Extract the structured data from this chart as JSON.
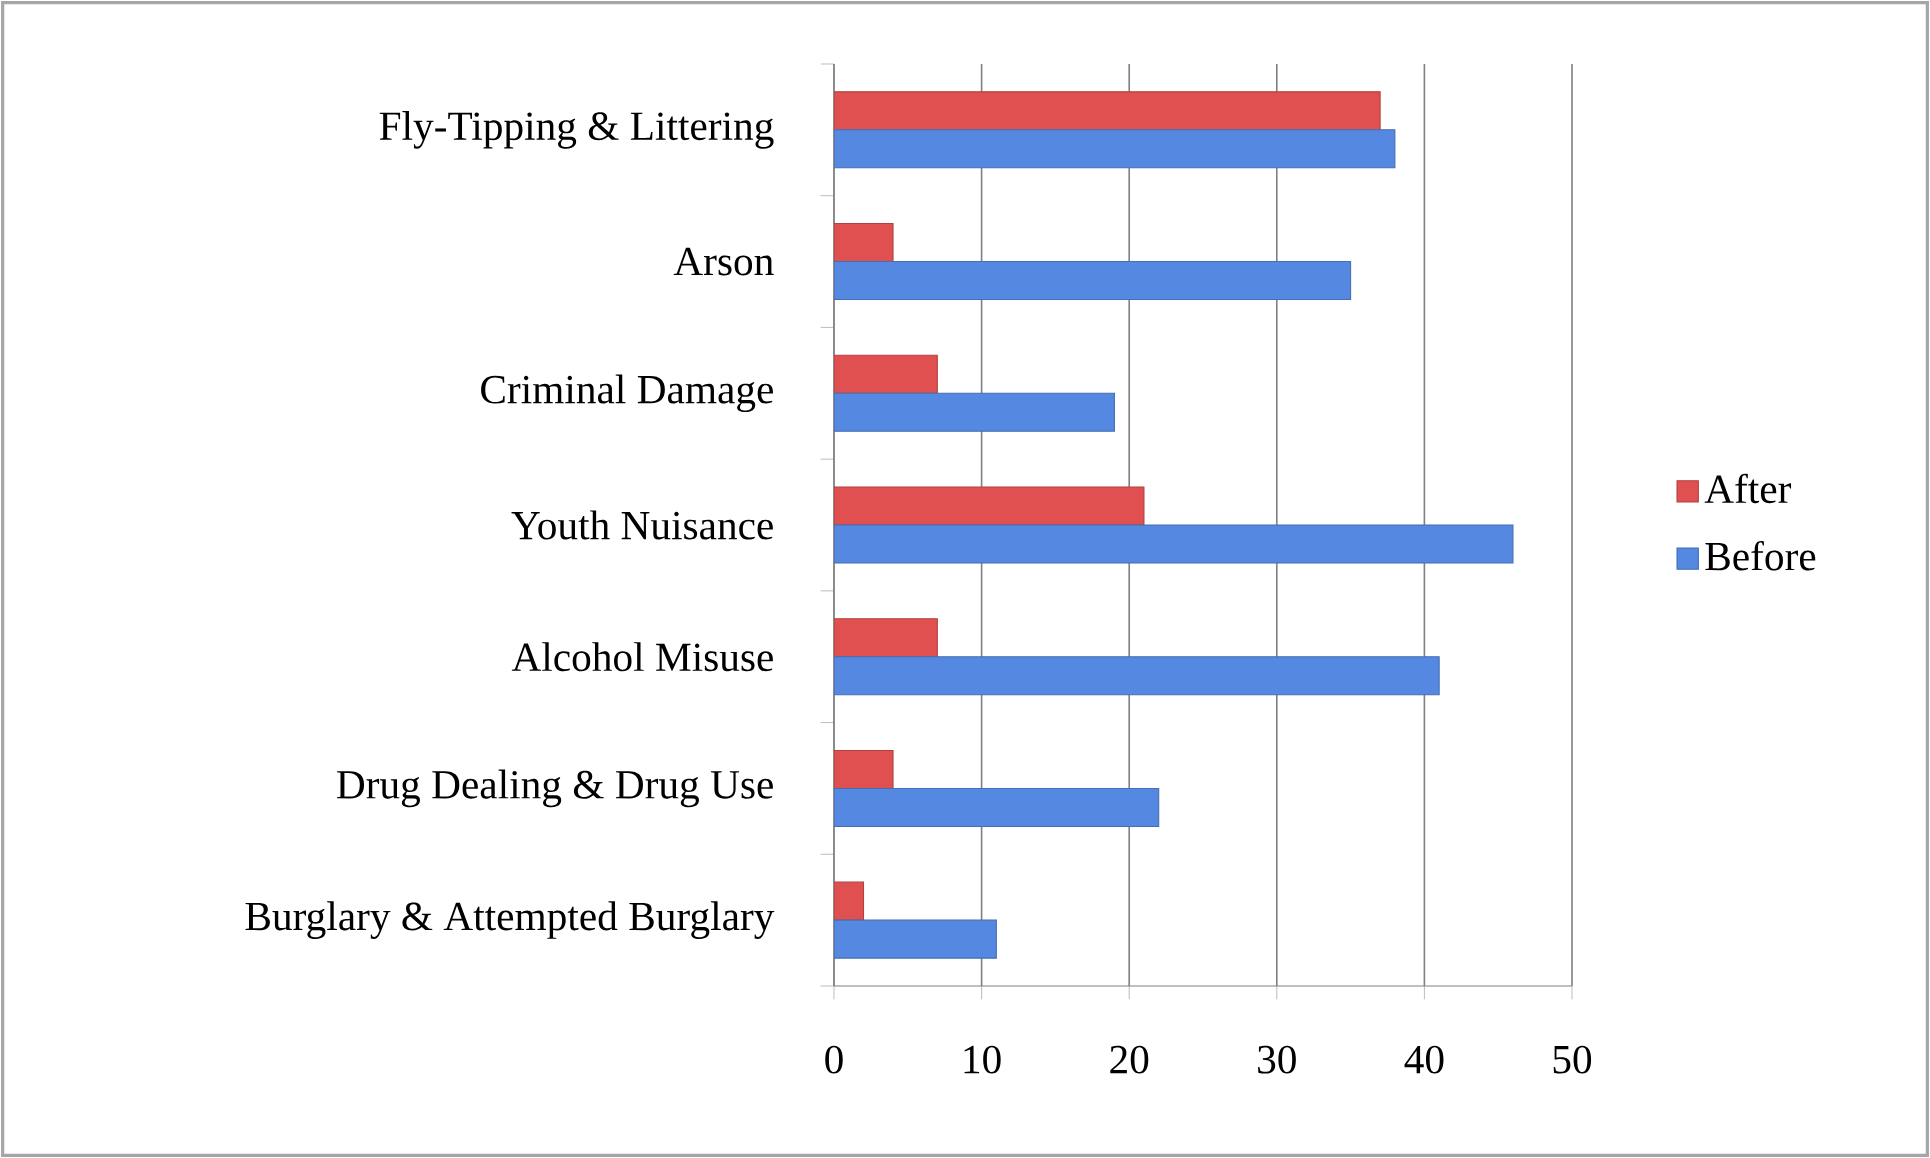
{
  "chart_data": {
    "type": "bar",
    "orientation": "horizontal",
    "categories": [
      "Fly-Tipping & Littering",
      "Arson",
      "Criminal Damage",
      "Youth Nuisance",
      "Alcohol Misuse",
      "Drug Dealing & Drug Use",
      "Burglary & Attempted Burglary"
    ],
    "series": [
      {
        "name": "After",
        "color": "#e05050",
        "values": [
          37,
          4,
          7,
          21,
          7,
          4,
          2
        ]
      },
      {
        "name": "Before",
        "color": "#5588e0",
        "values": [
          38,
          35,
          19,
          46,
          41,
          22,
          11
        ]
      }
    ],
    "xlim": [
      0,
      50
    ],
    "xticks": [
      0,
      10,
      20,
      30,
      40,
      50
    ],
    "grid": "x",
    "legend": "right"
  }
}
